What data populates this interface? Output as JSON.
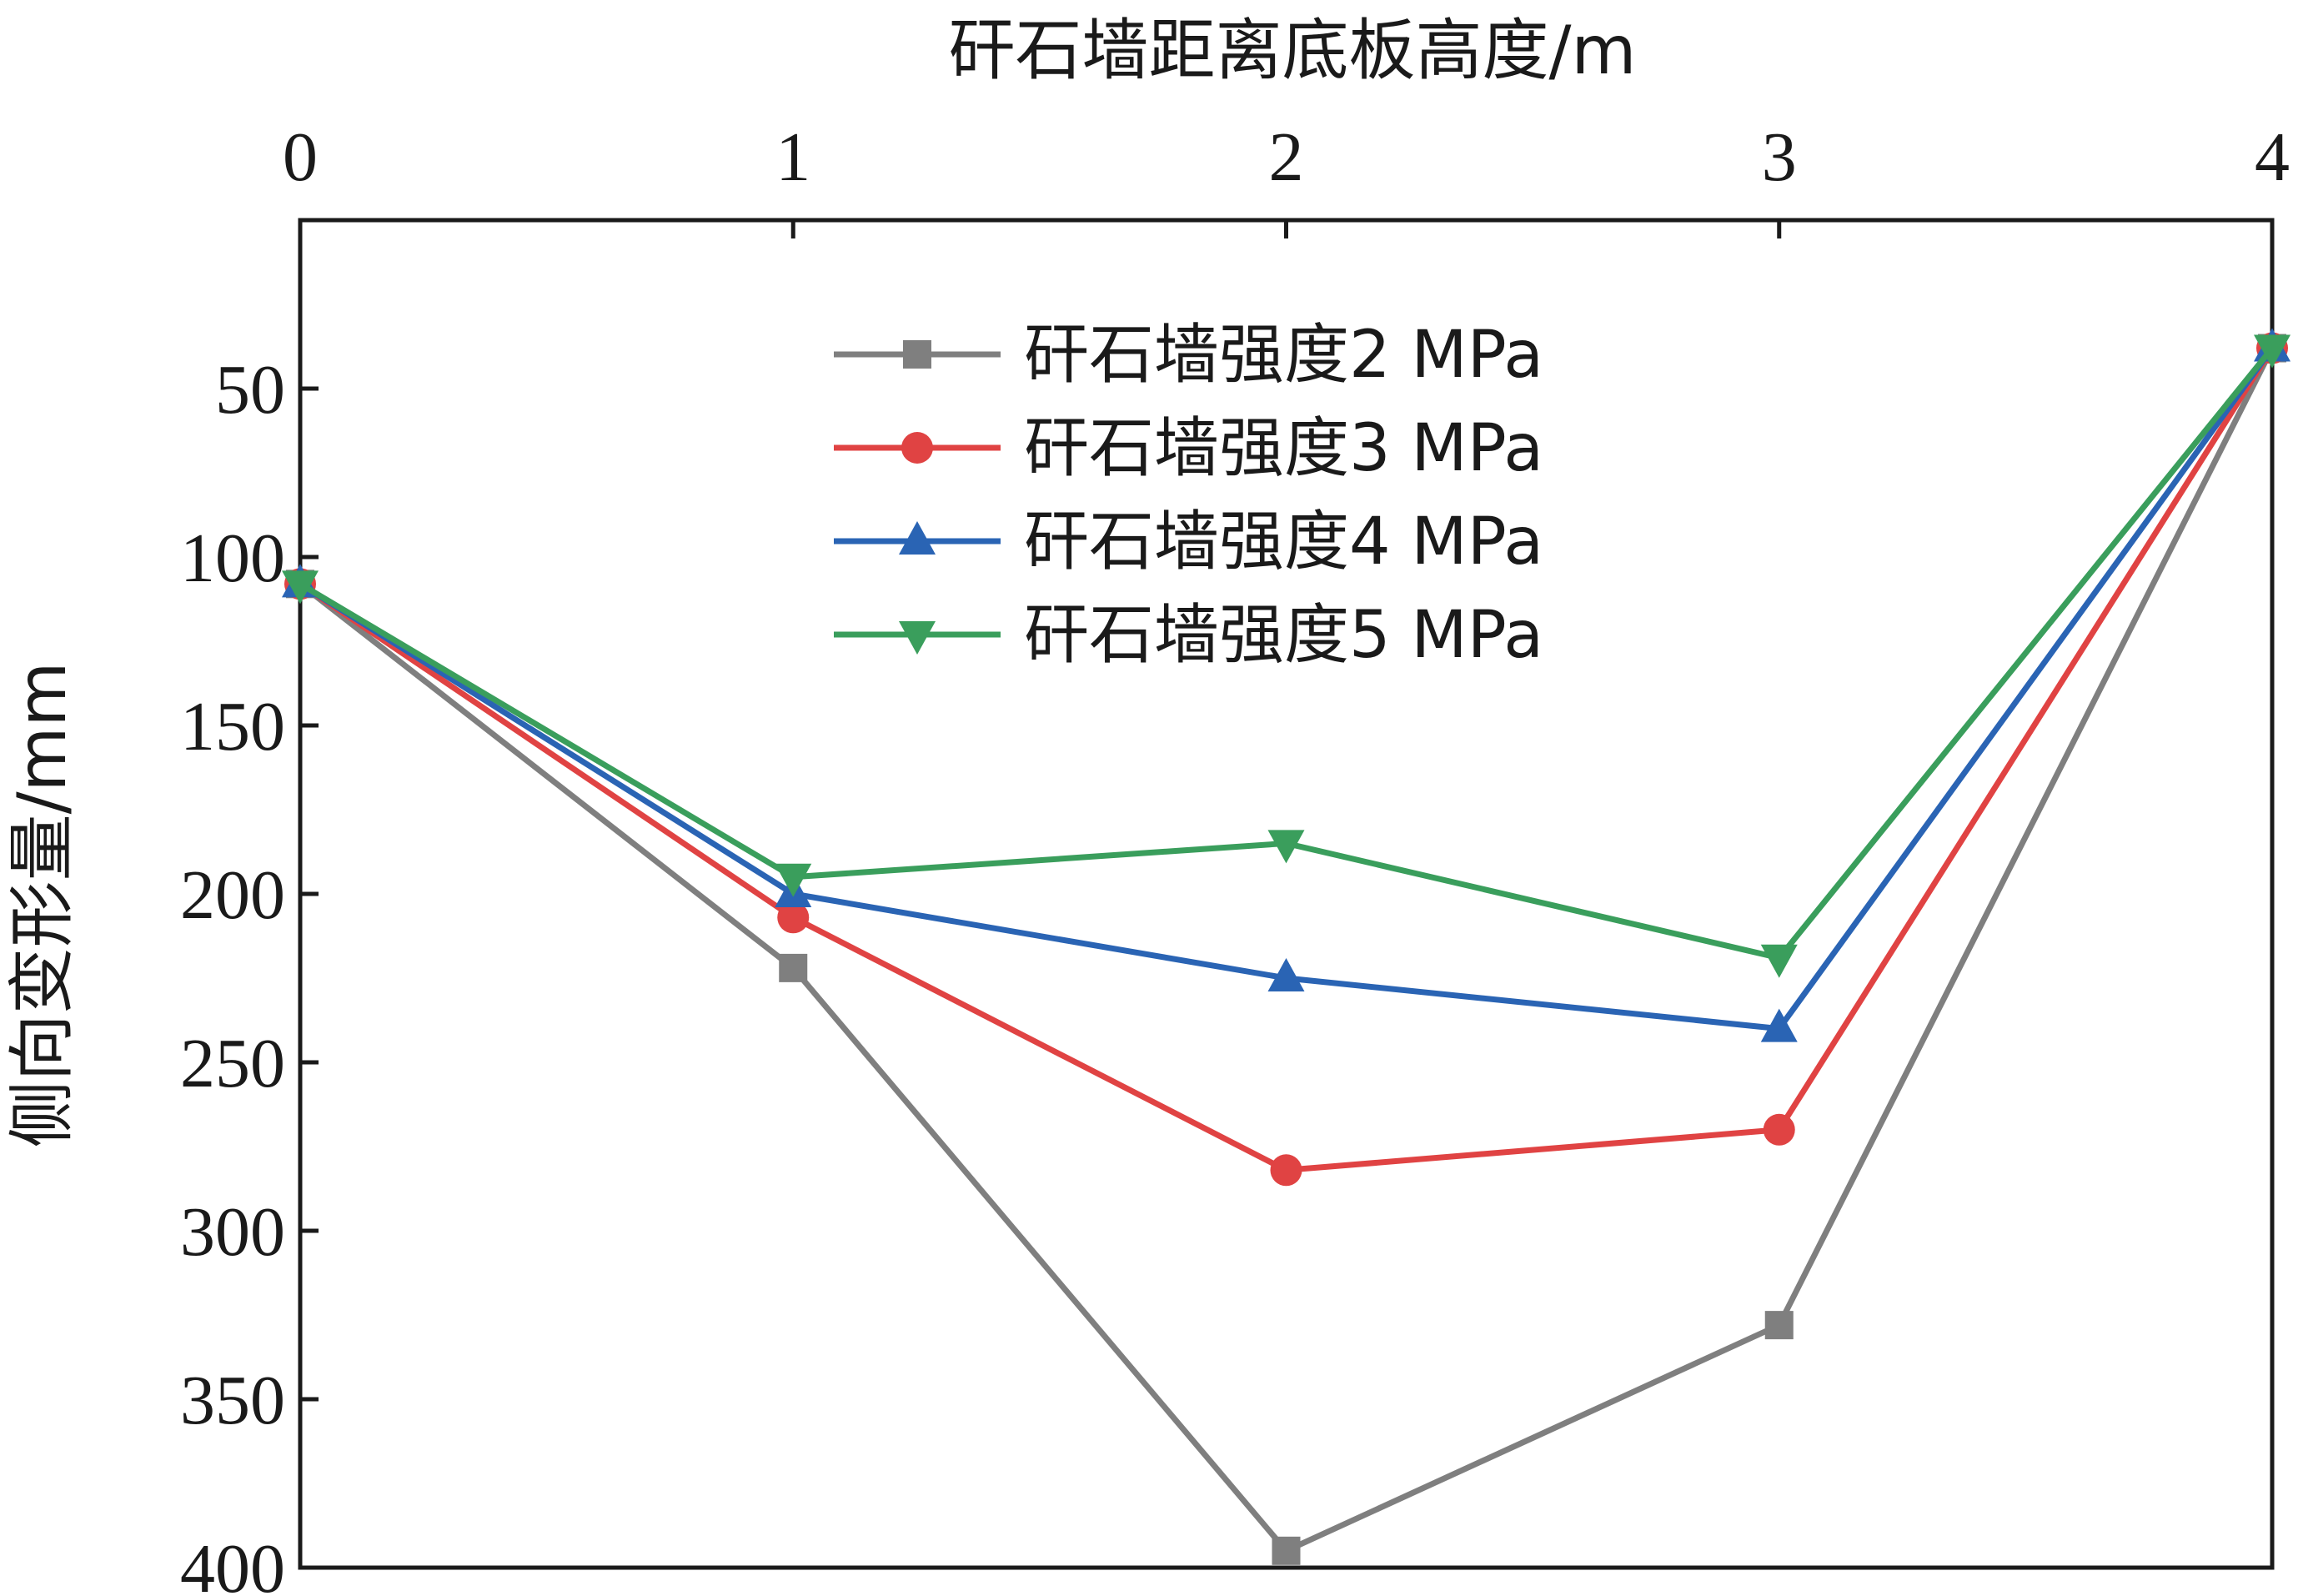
{
  "chart_data": {
    "type": "line",
    "xlabel": "矸石墙距离底板高度/m",
    "ylabel": "侧向变形量/mm",
    "x": [
      0,
      1,
      2,
      3,
      4
    ],
    "xlim": [
      0,
      4
    ],
    "xticks": [
      "0",
      "1",
      "2",
      "3",
      "4"
    ],
    "ylim": [
      400,
      0
    ],
    "yticks": [
      "50",
      "100",
      "150",
      "200",
      "250",
      "300",
      "350",
      "400"
    ],
    "y_inverted": true,
    "x_axis_position": "top",
    "grid": false,
    "legend_position": "top-center",
    "series": [
      {
        "name": "矸石墙强度2 MPa",
        "values": [
          108,
          222,
          395,
          328,
          38
        ],
        "color": "#7f7f7f",
        "marker": "square"
      },
      {
        "name": "矸石墙强度3 MPa",
        "values": [
          108,
          207,
          282,
          270,
          38
        ],
        "color": "#e04343",
        "marker": "circle"
      },
      {
        "name": "矸石墙强度4 MPa",
        "values": [
          108,
          200,
          225,
          240,
          38
        ],
        "color": "#2a64b4",
        "marker": "triangle-up"
      },
      {
        "name": "矸石墙强度5 MPa",
        "values": [
          108,
          195,
          185,
          219,
          38
        ],
        "color": "#3a9e5c",
        "marker": "triangle-down"
      }
    ]
  }
}
